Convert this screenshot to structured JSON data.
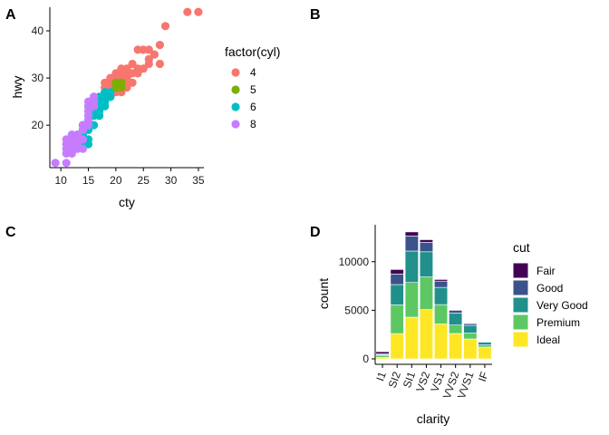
{
  "panels": {
    "a": {
      "label": "A"
    },
    "b": {
      "label": "B"
    },
    "c": {
      "label": "C"
    },
    "d": {
      "label": "D"
    }
  },
  "chart_data": [
    {
      "panel": "A",
      "type": "scatter",
      "title": "",
      "xlabel": "cty",
      "ylabel": "hwy",
      "xlim": [
        8,
        36
      ],
      "ylim": [
        11,
        45
      ],
      "xticks": [
        10,
        15,
        20,
        25,
        30,
        35
      ],
      "yticks": [
        20,
        30,
        40
      ],
      "grid": false,
      "legend": {
        "title": "factor(cyl)",
        "position": "right",
        "items": [
          {
            "label": "4",
            "color": "#F8766D"
          },
          {
            "label": "5",
            "color": "#7CAE00"
          },
          {
            "label": "6",
            "color": "#00BFC4"
          },
          {
            "label": "8",
            "color": "#C77CFF"
          }
        ]
      },
      "series": [
        {
          "name": "4",
          "color": "#F8766D",
          "points": [
            [
              18,
              29
            ],
            [
              20,
              29
            ],
            [
              21,
              31
            ],
            [
              21,
              30
            ],
            [
              22,
              31
            ],
            [
              22,
              30
            ],
            [
              23,
              31
            ],
            [
              24,
              32
            ],
            [
              25,
              32
            ],
            [
              26,
              33
            ],
            [
              26,
              34
            ],
            [
              27,
              35
            ],
            [
              28,
              33
            ],
            [
              29,
              41
            ],
            [
              33,
              44
            ],
            [
              35,
              44
            ],
            [
              24,
              36
            ],
            [
              25,
              36
            ],
            [
              26,
              36
            ],
            [
              28,
              37
            ],
            [
              24,
              31
            ],
            [
              23,
              33
            ],
            [
              21,
              29
            ],
            [
              20,
              28
            ],
            [
              20,
              27
            ],
            [
              19,
              26
            ],
            [
              19,
              27
            ],
            [
              18,
              26
            ],
            [
              18,
              25
            ],
            [
              17,
              24
            ],
            [
              18,
              28
            ],
            [
              19,
              29
            ],
            [
              21,
              27
            ],
            [
              22,
              29
            ],
            [
              23,
              29
            ],
            [
              22,
              32
            ],
            [
              20,
              31
            ],
            [
              21,
              32
            ],
            [
              19,
              28
            ],
            [
              17,
              26
            ],
            [
              18,
              27
            ],
            [
              19,
              30
            ],
            [
              20,
              30
            ],
            [
              22,
              28
            ]
          ]
        },
        {
          "name": "5",
          "color": "#7CAE00",
          "points": [
            [
              20,
              28
            ],
            [
              20,
              29
            ],
            [
              21,
              29
            ],
            [
              21,
              28
            ]
          ]
        },
        {
          "name": "6",
          "color": "#00BFC4",
          "points": [
            [
              14,
              20
            ],
            [
              15,
              22
            ],
            [
              16,
              23
            ],
            [
              17,
              25
            ],
            [
              18,
              25
            ],
            [
              18,
              26
            ],
            [
              19,
              26
            ],
            [
              19,
              27
            ],
            [
              17,
              26
            ],
            [
              15,
              24
            ],
            [
              16,
              24
            ],
            [
              16,
              26
            ],
            [
              17,
              24
            ],
            [
              15,
              21
            ],
            [
              14,
              19
            ],
            [
              14,
              18
            ],
            [
              13,
              17
            ],
            [
              13,
              18
            ],
            [
              15,
              17
            ],
            [
              16,
              20
            ],
            [
              17,
              22
            ],
            [
              18,
              24
            ],
            [
              15,
              19
            ],
            [
              14,
              17
            ],
            [
              16,
              22
            ],
            [
              17,
              23
            ],
            [
              15,
              20
            ],
            [
              15,
              16
            ],
            [
              14,
              16
            ],
            [
              18,
              27
            ]
          ]
        },
        {
          "name": "8",
          "color": "#C77CFF",
          "points": [
            [
              9,
              12
            ],
            [
              11,
              14
            ],
            [
              11,
              15
            ],
            [
              11,
              16
            ],
            [
              11,
              17
            ],
            [
              12,
              15
            ],
            [
              12,
              16
            ],
            [
              12,
              17
            ],
            [
              13,
              16
            ],
            [
              13,
              17
            ],
            [
              13,
              18
            ],
            [
              14,
              17
            ],
            [
              14,
              19
            ],
            [
              14,
              20
            ],
            [
              15,
              20
            ],
            [
              15,
              21
            ],
            [
              15,
              22
            ],
            [
              15,
              23
            ],
            [
              15,
              24
            ],
            [
              15,
              25
            ],
            [
              16,
              24
            ],
            [
              16,
              25
            ],
            [
              16,
              26
            ],
            [
              12,
              14
            ],
            [
              11,
              12
            ],
            [
              12,
              18
            ],
            [
              13,
              15
            ],
            [
              14,
              15
            ]
          ]
        }
      ]
    },
    {
      "panel": "D",
      "type": "bar",
      "stacked": true,
      "title": "",
      "xlabel": "clarity",
      "ylabel": "count",
      "categories": [
        "I1",
        "SI2",
        "SI1",
        "VS2",
        "VS1",
        "VVS2",
        "VVS1",
        "IF"
      ],
      "ylim": [
        0,
        13800
      ],
      "yticks": [
        0,
        5000,
        10000
      ],
      "grid": false,
      "legend": {
        "title": "cut",
        "position": "right"
      },
      "series": [
        {
          "name": "Fair",
          "color": "#440154",
          "values": [
            210,
            466,
            408,
            261,
            170,
            69,
            17,
            9
          ]
        },
        {
          "name": "Good",
          "color": "#3B528B",
          "values": [
            96,
            1081,
            1560,
            978,
            648,
            286,
            186,
            71
          ]
        },
        {
          "name": "Very Good",
          "color": "#21908C",
          "values": [
            84,
            2100,
            3240,
            2591,
            1775,
            1235,
            789,
            268
          ]
        },
        {
          "name": "Premium",
          "color": "#5DC863",
          "values": [
            205,
            2949,
            3575,
            3357,
            1989,
            870,
            616,
            230
          ]
        },
        {
          "name": "Ideal",
          "color": "#FDE725",
          "values": [
            146,
            2598,
            4282,
            5071,
            3589,
            2606,
            2047,
            1212
          ]
        }
      ]
    }
  ]
}
